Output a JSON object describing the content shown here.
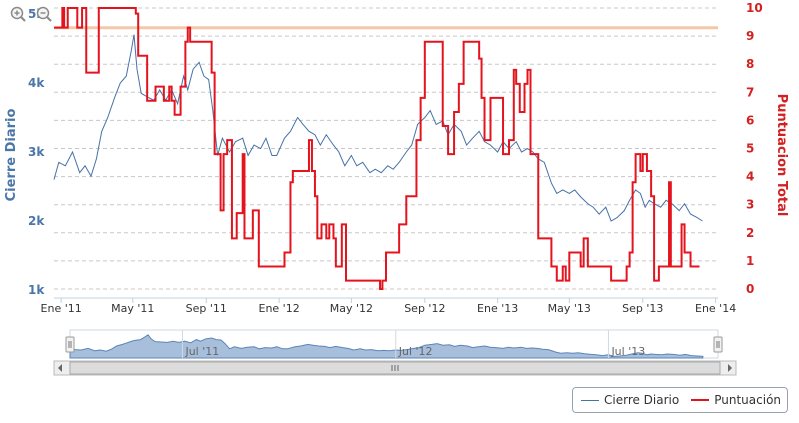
{
  "chart_data": {
    "type": "line",
    "left_axis": {
      "title": "Cierre Diario",
      "ticks": [
        "1k",
        "2k",
        "3k",
        "4k",
        "5k"
      ],
      "tick_values": [
        1000,
        2000,
        3000,
        4000,
        5000
      ],
      "ylim": [
        1000,
        5000
      ]
    },
    "right_axis": {
      "title": "Puntuacion Total",
      "ticks": [
        "0",
        "1",
        "2",
        "3",
        "4",
        "5",
        "6",
        "7",
        "8",
        "9",
        "10"
      ],
      "tick_values": [
        0,
        1,
        2,
        3,
        4,
        5,
        6,
        7,
        8,
        9,
        10
      ],
      "ylim": [
        0,
        10
      ]
    },
    "x_axis": {
      "ticks": [
        "Ene '11",
        "May '11",
        "Sep '11",
        "Ene '12",
        "May '12",
        "Sep '12",
        "Ene '13",
        "May '13",
        "Sep '13",
        "Ene '14"
      ],
      "tick_dates": [
        "2011-01",
        "2011-05",
        "2011-09",
        "2012-01",
        "2012-05",
        "2012-09",
        "2013-01",
        "2013-05",
        "2013-09",
        "2014-01"
      ],
      "xlim": [
        "2010-12-20",
        "2014-01-05"
      ]
    },
    "plot_line": {
      "value": 4800,
      "axis": "left",
      "color": "#f5c7a8"
    },
    "grid": true,
    "legend_position": "bottom-right",
    "series": [
      {
        "name": "Cierre Diario",
        "axis": "left",
        "color": "#4572a7",
        "points": [
          [
            "2010-12-20",
            2600
          ],
          [
            "2010-12-28",
            2850
          ],
          [
            "2011-01-08",
            2800
          ],
          [
            "2011-01-20",
            3000
          ],
          [
            "2011-02-01",
            2700
          ],
          [
            "2011-02-10",
            2800
          ],
          [
            "2011-02-20",
            2650
          ],
          [
            "2011-03-01",
            2900
          ],
          [
            "2011-03-10",
            3300
          ],
          [
            "2011-03-20",
            3500
          ],
          [
            "2011-04-01",
            3800
          ],
          [
            "2011-04-10",
            4000
          ],
          [
            "2011-04-20",
            4100
          ],
          [
            "2011-04-28",
            4450
          ],
          [
            "2011-05-03",
            4700
          ],
          [
            "2011-05-08",
            4200
          ],
          [
            "2011-05-15",
            3850
          ],
          [
            "2011-05-25",
            3800
          ],
          [
            "2011-06-05",
            3750
          ],
          [
            "2011-06-15",
            3900
          ],
          [
            "2011-06-25",
            3750
          ],
          [
            "2011-07-05",
            3900
          ],
          [
            "2011-07-15",
            3700
          ],
          [
            "2011-07-25",
            4100
          ],
          [
            "2011-08-01",
            3900
          ],
          [
            "2011-08-10",
            4200
          ],
          [
            "2011-08-20",
            4300
          ],
          [
            "2011-08-28",
            4100
          ],
          [
            "2011-09-05",
            4050
          ],
          [
            "2011-09-12",
            3600
          ],
          [
            "2011-09-20",
            2950
          ],
          [
            "2011-09-28",
            3200
          ],
          [
            "2011-10-10",
            3000
          ],
          [
            "2011-10-20",
            3150
          ],
          [
            "2011-11-01",
            3200
          ],
          [
            "2011-11-10",
            2950
          ],
          [
            "2011-11-20",
            3100
          ],
          [
            "2011-12-01",
            3050
          ],
          [
            "2011-12-10",
            3200
          ],
          [
            "2011-12-20",
            2950
          ],
          [
            "2011-12-28",
            2950
          ],
          [
            "2012-01-10",
            3200
          ],
          [
            "2012-01-20",
            3300
          ],
          [
            "2012-02-01",
            3500
          ],
          [
            "2012-02-10",
            3400
          ],
          [
            "2012-02-20",
            3300
          ],
          [
            "2012-03-01",
            3250
          ],
          [
            "2012-03-10",
            3100
          ],
          [
            "2012-03-20",
            3250
          ],
          [
            "2012-04-01",
            3100
          ],
          [
            "2012-04-10",
            3000
          ],
          [
            "2012-04-20",
            2800
          ],
          [
            "2012-05-01",
            2950
          ],
          [
            "2012-05-10",
            2800
          ],
          [
            "2012-05-20",
            2850
          ],
          [
            "2012-06-01",
            2700
          ],
          [
            "2012-06-10",
            2750
          ],
          [
            "2012-06-20",
            2700
          ],
          [
            "2012-07-01",
            2800
          ],
          [
            "2012-07-10",
            2750
          ],
          [
            "2012-07-20",
            2850
          ],
          [
            "2012-08-01",
            3000
          ],
          [
            "2012-08-10",
            3100
          ],
          [
            "2012-08-20",
            3400
          ],
          [
            "2012-09-01",
            3500
          ],
          [
            "2012-09-10",
            3600
          ],
          [
            "2012-09-20",
            3400
          ],
          [
            "2012-10-01",
            3450
          ],
          [
            "2012-10-10",
            3250
          ],
          [
            "2012-10-20",
            3400
          ],
          [
            "2012-11-01",
            3300
          ],
          [
            "2012-11-10",
            3100
          ],
          [
            "2012-11-20",
            3200
          ],
          [
            "2012-12-01",
            3300
          ],
          [
            "2012-12-10",
            3150
          ],
          [
            "2012-12-20",
            3100
          ],
          [
            "2013-01-01",
            3000
          ],
          [
            "2013-01-10",
            3150
          ],
          [
            "2013-01-20",
            3050
          ],
          [
            "2013-02-01",
            3150
          ],
          [
            "2013-02-10",
            3000
          ],
          [
            "2013-02-20",
            3050
          ],
          [
            "2013-03-01",
            3000
          ],
          [
            "2013-03-10",
            2900
          ],
          [
            "2013-03-20",
            2850
          ],
          [
            "2013-04-01",
            2550
          ],
          [
            "2013-04-10",
            2400
          ],
          [
            "2013-04-20",
            2450
          ],
          [
            "2013-05-01",
            2400
          ],
          [
            "2013-05-10",
            2450
          ],
          [
            "2013-05-20",
            2350
          ],
          [
            "2013-06-01",
            2250
          ],
          [
            "2013-06-10",
            2200
          ],
          [
            "2013-06-20",
            2100
          ],
          [
            "2013-07-01",
            2200
          ],
          [
            "2013-07-10",
            2000
          ],
          [
            "2013-07-20",
            2050
          ],
          [
            "2013-08-01",
            2150
          ],
          [
            "2013-08-10",
            2300
          ],
          [
            "2013-08-20",
            2450
          ],
          [
            "2013-08-28",
            2400
          ],
          [
            "2013-09-05",
            2200
          ],
          [
            "2013-09-12",
            2300
          ],
          [
            "2013-09-20",
            2250
          ],
          [
            "2013-10-01",
            2200
          ],
          [
            "2013-10-10",
            2300
          ],
          [
            "2013-10-20",
            2250
          ],
          [
            "2013-11-01",
            2150
          ],
          [
            "2013-11-10",
            2250
          ],
          [
            "2013-11-20",
            2100
          ],
          [
            "2013-12-01",
            2050
          ],
          [
            "2013-12-10",
            2000
          ]
        ]
      },
      {
        "name": "Puntuación",
        "axis": "right",
        "color": "#e4141e",
        "step": true,
        "points": [
          [
            "2010-12-20",
            9.3
          ],
          [
            "2011-01-01",
            9.3
          ],
          [
            "2011-01-03",
            10
          ],
          [
            "2011-01-06",
            9.3
          ],
          [
            "2011-01-12",
            10
          ],
          [
            "2011-01-28",
            9.3
          ],
          [
            "2011-02-05",
            10
          ],
          [
            "2011-02-12",
            7.7
          ],
          [
            "2011-03-05",
            10
          ],
          [
            "2011-05-06",
            9.8
          ],
          [
            "2011-05-10",
            8.3
          ],
          [
            "2011-05-25",
            6.7
          ],
          [
            "2011-06-08",
            7.2
          ],
          [
            "2011-06-22",
            6.7
          ],
          [
            "2011-07-01",
            7.2
          ],
          [
            "2011-07-05",
            6.7
          ],
          [
            "2011-07-10",
            6.2
          ],
          [
            "2011-07-20",
            7.2
          ],
          [
            "2011-07-28",
            8.8
          ],
          [
            "2011-08-01",
            9.3
          ],
          [
            "2011-08-05",
            8.8
          ],
          [
            "2011-09-10",
            7.7
          ],
          [
            "2011-09-15",
            4.8
          ],
          [
            "2011-09-25",
            2.8
          ],
          [
            "2011-09-30",
            4.8
          ],
          [
            "2011-10-06",
            5.3
          ],
          [
            "2011-10-14",
            1.8
          ],
          [
            "2011-10-22",
            2.7
          ],
          [
            "2011-11-01",
            4.8
          ],
          [
            "2011-11-04",
            1.8
          ],
          [
            "2011-11-12",
            1.8
          ],
          [
            "2011-11-18",
            2.8
          ],
          [
            "2011-11-28",
            0.8
          ],
          [
            "2012-01-10",
            1.3
          ],
          [
            "2012-01-20",
            3.8
          ],
          [
            "2012-01-24",
            4.2
          ],
          [
            "2012-02-20",
            5.3
          ],
          [
            "2012-02-25",
            4.2
          ],
          [
            "2012-03-01",
            3.3
          ],
          [
            "2012-03-05",
            1.8
          ],
          [
            "2012-03-12",
            2.3
          ],
          [
            "2012-03-20",
            1.8
          ],
          [
            "2012-03-25",
            2.3
          ],
          [
            "2012-04-01",
            1.8
          ],
          [
            "2012-04-05",
            0.8
          ],
          [
            "2012-04-15",
            2.3
          ],
          [
            "2012-04-22",
            0.3
          ],
          [
            "2012-06-18",
            0
          ],
          [
            "2012-06-22",
            0.3
          ],
          [
            "2012-06-28",
            1.3
          ],
          [
            "2012-07-10",
            1.3
          ],
          [
            "2012-07-20",
            2.3
          ],
          [
            "2012-08-01",
            3.3
          ],
          [
            "2012-08-18",
            5.3
          ],
          [
            "2012-08-25",
            6.8
          ],
          [
            "2012-09-01",
            8.8
          ],
          [
            "2012-09-05",
            8.8
          ],
          [
            "2012-10-01",
            5.8
          ],
          [
            "2012-10-10",
            4.8
          ],
          [
            "2012-10-20",
            6.3
          ],
          [
            "2012-10-28",
            7.3
          ],
          [
            "2012-11-05",
            8.8
          ],
          [
            "2012-12-01",
            8.2
          ],
          [
            "2012-12-05",
            6.8
          ],
          [
            "2012-12-10",
            5.3
          ],
          [
            "2012-12-20",
            6.8
          ],
          [
            "2013-01-10",
            4.8
          ],
          [
            "2013-01-20",
            5.3
          ],
          [
            "2013-01-28",
            7.8
          ],
          [
            "2013-02-01",
            7.3
          ],
          [
            "2013-02-07",
            6.3
          ],
          [
            "2013-02-15",
            7.3
          ],
          [
            "2013-02-20",
            7.8
          ],
          [
            "2013-02-25",
            4.8
          ],
          [
            "2013-03-01",
            4.8
          ],
          [
            "2013-03-10",
            1.8
          ],
          [
            "2013-04-01",
            0.8
          ],
          [
            "2013-04-10",
            0.3
          ],
          [
            "2013-04-20",
            0.8
          ],
          [
            "2013-04-25",
            0.3
          ],
          [
            "2013-05-01",
            1.3
          ],
          [
            "2013-05-15",
            1.3
          ],
          [
            "2013-05-20",
            0.8
          ],
          [
            "2013-05-25",
            1.8
          ],
          [
            "2013-06-01",
            0.8
          ],
          [
            "2013-06-10",
            0.8
          ],
          [
            "2013-07-01",
            0.8
          ],
          [
            "2013-07-10",
            0.3
          ],
          [
            "2013-08-05",
            0.8
          ],
          [
            "2013-08-10",
            1.3
          ],
          [
            "2013-08-15",
            3.8
          ],
          [
            "2013-08-20",
            4.8
          ],
          [
            "2013-08-28",
            4.2
          ],
          [
            "2013-09-01",
            4.8
          ],
          [
            "2013-09-08",
            4.2
          ],
          [
            "2013-09-15",
            3.3
          ],
          [
            "2013-09-20",
            0.3
          ],
          [
            "2013-09-28",
            0.8
          ],
          [
            "2013-10-15",
            3.8
          ],
          [
            "2013-10-18",
            0.8
          ],
          [
            "2013-11-05",
            2.3
          ],
          [
            "2013-11-10",
            1.3
          ],
          [
            "2013-11-20",
            0.8
          ],
          [
            "2013-12-05",
            0.8
          ]
        ]
      }
    ]
  },
  "navigator": {
    "labels": [
      "Jul '11",
      "Jul '12",
      "Jul '13"
    ],
    "handle_left": "left-handle",
    "handle_right": "right-handle"
  },
  "legend": {
    "items": [
      {
        "label": "Cierre Diario",
        "color": "#4572a7"
      },
      {
        "label": "Puntuación",
        "color": "#e4141e"
      }
    ]
  },
  "toolbar": {
    "zoom_in_icon": "zoom-in-icon",
    "zoom_out_icon": "zoom-out-icon"
  }
}
